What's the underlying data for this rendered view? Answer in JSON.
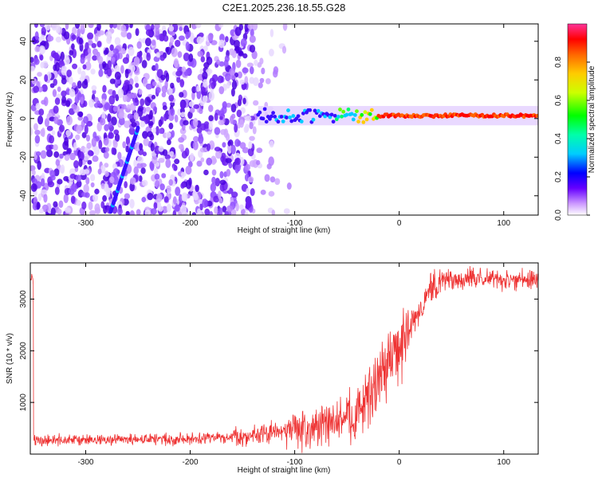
{
  "figure": {
    "title": "C2E1.2025.236.18.55.G28"
  },
  "chart_data": [
    {
      "type": "heatmap",
      "name": "spectrogram",
      "xlabel": "Height of straight line (km)",
      "ylabel": "Frequency (Hz)",
      "xlim": [
        -353,
        133
      ],
      "ylim": [
        -50,
        49
      ],
      "xticks": [
        -300,
        -200,
        -100,
        0,
        100
      ],
      "yticks": [
        -40,
        -20,
        0,
        20,
        40
      ],
      "colorbar": {
        "label": "Normalized spectral amplitude",
        "range": [
          0,
          1
        ],
        "ticks": [
          0.0,
          0.2,
          0.4,
          0.6,
          0.8
        ]
      },
      "features": {
        "noise_region_x": [
          -353,
          -100
        ],
        "diagonal_streak": {
          "x_start": -276,
          "y_start": -48,
          "x_end": -250,
          "y_end": -5
        },
        "carrier_onset_x": -135,
        "carrier_frequency_hz": 1.5,
        "carrier_peak_start_x": -20
      }
    },
    {
      "type": "line",
      "name": "snr",
      "xlabel": "Height of straight line (km)",
      "ylabel": "SNR (10 * v/v)",
      "xlim": [
        -353,
        133
      ],
      "ylim": [
        0,
        3700
      ],
      "xticks": [
        -300,
        -200,
        -100,
        0,
        100
      ],
      "yticks": [
        1000,
        2000,
        3000
      ],
      "color": "#ee3333",
      "series": [
        {
          "name": "SNR",
          "x": [
            -350,
            -300,
            -250,
            -200,
            -160,
            -140,
            -120,
            -100,
            -80,
            -60,
            -40,
            -30,
            -20,
            -10,
            0,
            10,
            20,
            30,
            40,
            60,
            80,
            100,
            133
          ],
          "values": [
            260,
            270,
            280,
            300,
            330,
            360,
            420,
            470,
            520,
            600,
            800,
            1100,
            1450,
            1800,
            2000,
            2400,
            2800,
            3150,
            3380,
            3400,
            3390,
            3380,
            3380
          ]
        }
      ]
    }
  ]
}
